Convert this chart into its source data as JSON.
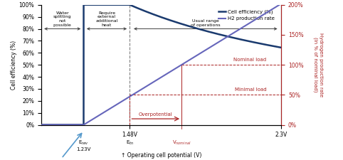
{
  "x_min": 1.0,
  "x_max": 2.3,
  "e_rev": 1.23,
  "e_tn": 1.48,
  "v_nominal": 1.76,
  "efficiency_color": "#1a3a6e",
  "h2_rate_color": "#6666bb",
  "nominal_load_color": "#aa2222",
  "annotation_color": "#aa2222",
  "arrow_color": "#5599cc",
  "region_arrow_color": "#444444",
  "bg_color": "#ffffff",
  "left_ylabel": "Cell efficiency (%)",
  "right_ylabel": "Hydrogen production rate\n(in % of nominal load)",
  "xlabel": "↑ Operating cell potential (V)",
  "legend_efficiency": "Cell efficiency (%)",
  "legend_h2": "H2 production rate",
  "yticks_left": [
    0,
    10,
    20,
    30,
    40,
    50,
    60,
    70,
    80,
    90,
    100
  ],
  "yticks_right": [
    0,
    50,
    100,
    150,
    200
  ],
  "ytick_labels_left": [
    "0%",
    "10%",
    "20%",
    "30%",
    "40%",
    "50%",
    "60%",
    "70%",
    "80%",
    "90%",
    "100%"
  ],
  "ytick_labels_right": [
    "0%",
    "50%",
    "100%",
    "150%",
    "200%"
  ],
  "text_water": "Water\nsplitting\nnot\npossible",
  "text_heat": "Require\nexternal\nadditional\nheat",
  "text_usual": "Usual range\nof operations",
  "text_overpotential": "Overpotential",
  "text_nominal_load": "Nominal load",
  "text_minimal_load": "Minimal load"
}
